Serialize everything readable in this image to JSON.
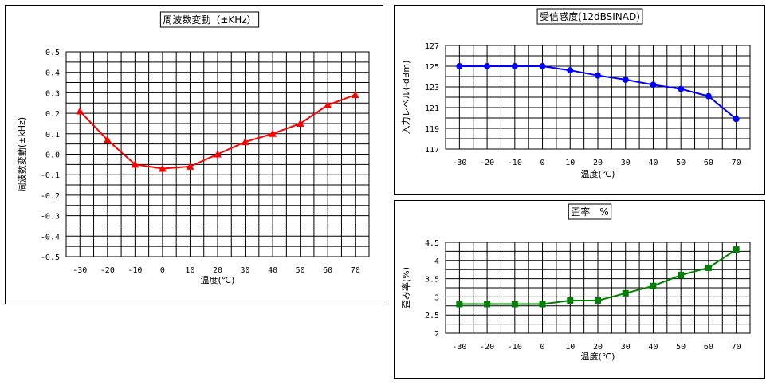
{
  "chart_data": [
    {
      "id": "freq",
      "type": "line",
      "title": "周波数変動（±KHz）",
      "xlabel": "温度(℃)",
      "ylabel": "周波数変動(±kHz)",
      "x": [
        -30,
        -20,
        -10,
        0,
        10,
        20,
        30,
        40,
        50,
        60,
        70
      ],
      "xticks": [
        "-30",
        "-20",
        "-10",
        "0",
        "10",
        "20",
        "30",
        "40",
        "50",
        "60",
        "70"
      ],
      "ylim": [
        -0.5,
        0.5
      ],
      "yticks": [
        "0.5",
        "0.4",
        "0.3",
        "0.2",
        "0.1",
        "0.0",
        "-0.1",
        "-0.2",
        "-0.3",
        "-0.4",
        "-0.5"
      ],
      "yticks_values": [
        0.5,
        0.4,
        0.3,
        0.2,
        0.1,
        0.0,
        -0.1,
        -0.2,
        -0.3,
        -0.4,
        -0.5
      ],
      "grid": true,
      "series": [
        {
          "values": [
            0.21,
            0.07,
            -0.05,
            -0.07,
            -0.06,
            0.0,
            0.06,
            0.1,
            0.15,
            0.24,
            0.29
          ],
          "color": "#ff0000",
          "marker": "triangle"
        }
      ]
    },
    {
      "id": "sens",
      "type": "line",
      "title": "受信感度(12dBSINAD)",
      "xlabel": "温度(℃)",
      "ylabel": "入力レベル(-dBm)",
      "x": [
        -30,
        -20,
        -10,
        0,
        10,
        20,
        30,
        40,
        50,
        60,
        70
      ],
      "xticks": [
        "-30",
        "-20",
        "-10",
        "0",
        "10",
        "20",
        "30",
        "40",
        "50",
        "60",
        "70"
      ],
      "ylim": [
        117,
        127
      ],
      "yticks": [
        "127",
        "125",
        "123",
        "121",
        "119",
        "117"
      ],
      "yticks_values": [
        127,
        125,
        123,
        121,
        119,
        117
      ],
      "grid": true,
      "series": [
        {
          "values": [
            125,
            125,
            125,
            125,
            124.6,
            124.1,
            123.7,
            123.2,
            122.8,
            122.1,
            119.9
          ],
          "color": "#0000ff",
          "marker": "circle"
        }
      ]
    },
    {
      "id": "dist",
      "type": "line",
      "title": "歪率　%",
      "xlabel": "温度(℃)",
      "ylabel": "歪み率(%)",
      "x": [
        -30,
        -20,
        -10,
        0,
        10,
        20,
        30,
        40,
        50,
        60,
        70
      ],
      "xticks": [
        "-30",
        "-20",
        "-10",
        "0",
        "10",
        "20",
        "30",
        "40",
        "50",
        "60",
        "70"
      ],
      "ylim": [
        2,
        4.5
      ],
      "yticks": [
        "4.5",
        "4",
        "3.5",
        "3",
        "2.5",
        "2"
      ],
      "yticks_values": [
        4.5,
        4,
        3.5,
        3,
        2.5,
        2
      ],
      "grid": true,
      "series": [
        {
          "values": [
            2.8,
            2.8,
            2.8,
            2.8,
            2.9,
            2.9,
            3.1,
            3.3,
            3.6,
            3.8,
            4.3
          ],
          "color": "#008000",
          "marker": "square"
        }
      ]
    }
  ]
}
